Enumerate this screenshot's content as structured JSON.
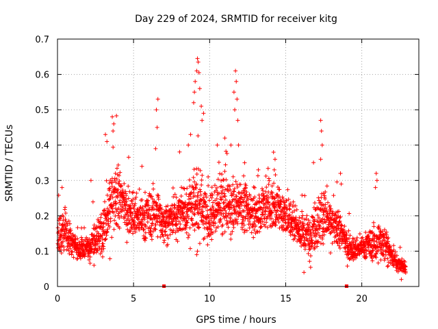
{
  "chart_data": {
    "type": "scatter",
    "title": "Day 229 of 2024, SRMTID for receiver kitg",
    "xlabel": "GPS time / hours",
    "ylabel": "SRMTID / TECUs",
    "xlim": [
      0,
      23.75
    ],
    "ylim": [
      0,
      0.7
    ],
    "xticks": [
      0,
      5,
      10,
      15,
      20
    ],
    "xtick_labels": [
      "0",
      "5",
      "10",
      "15",
      "20"
    ],
    "yticks": [
      0,
      0.1,
      0.2,
      0.3,
      0.4,
      0.5,
      0.6,
      0.7
    ],
    "ytick_labels": [
      "0",
      "0.1",
      "0.2",
      "0.3",
      "0.4",
      "0.5",
      "0.6",
      "0.7"
    ],
    "grid": true,
    "marker": "plus",
    "marker_color": "#ff0000",
    "envelope": {
      "description": "approximate local median and spread of the point cloud (data units)",
      "x": [
        0,
        0.5,
        1,
        1.5,
        2,
        2.5,
        3,
        3.5,
        4,
        4.5,
        5,
        5.5,
        6,
        6.5,
        7,
        7.5,
        8,
        8.5,
        9,
        9.5,
        10,
        10.5,
        11,
        11.5,
        12,
        12.5,
        13,
        13.5,
        14,
        14.5,
        15,
        15.5,
        16,
        16.5,
        17,
        17.5,
        18,
        18.5,
        19,
        19.5,
        20,
        20.5,
        21,
        21.5,
        22,
        22.5,
        22.9
      ],
      "median": [
        0.13,
        0.16,
        0.12,
        0.1,
        0.11,
        0.14,
        0.16,
        0.22,
        0.25,
        0.22,
        0.2,
        0.19,
        0.2,
        0.21,
        0.18,
        0.19,
        0.2,
        0.21,
        0.25,
        0.22,
        0.19,
        0.21,
        0.23,
        0.22,
        0.23,
        0.22,
        0.2,
        0.22,
        0.23,
        0.22,
        0.2,
        0.19,
        0.15,
        0.14,
        0.18,
        0.21,
        0.17,
        0.16,
        0.12,
        0.1,
        0.11,
        0.12,
        0.12,
        0.13,
        0.08,
        0.06,
        0.05
      ],
      "spread": [
        0.05,
        0.07,
        0.03,
        0.03,
        0.03,
        0.05,
        0.07,
        0.11,
        0.09,
        0.06,
        0.06,
        0.06,
        0.07,
        0.06,
        0.05,
        0.06,
        0.07,
        0.08,
        0.1,
        0.09,
        0.06,
        0.07,
        0.08,
        0.07,
        0.07,
        0.06,
        0.06,
        0.07,
        0.07,
        0.06,
        0.05,
        0.06,
        0.05,
        0.06,
        0.08,
        0.08,
        0.06,
        0.05,
        0.04,
        0.03,
        0.03,
        0.04,
        0.05,
        0.05,
        0.03,
        0.02,
        0.02
      ]
    },
    "spikes": [
      {
        "x": 0.3,
        "y": 0.28
      },
      {
        "x": 2.2,
        "y": 0.3
      },
      {
        "x": 3.15,
        "y": 0.43
      },
      {
        "x": 3.25,
        "y": 0.41
      },
      {
        "x": 3.6,
        "y": 0.48
      },
      {
        "x": 3.7,
        "y": 0.46
      },
      {
        "x": 3.65,
        "y": 0.44
      },
      {
        "x": 5.55,
        "y": 0.34
      },
      {
        "x": 6.6,
        "y": 0.53
      },
      {
        "x": 6.5,
        "y": 0.5
      },
      {
        "x": 6.55,
        "y": 0.45
      },
      {
        "x": 6.45,
        "y": 0.39
      },
      {
        "x": 8.6,
        "y": 0.4
      },
      {
        "x": 8.75,
        "y": 0.43
      },
      {
        "x": 8.95,
        "y": 0.52
      },
      {
        "x": 9.0,
        "y": 0.55
      },
      {
        "x": 9.05,
        "y": 0.58
      },
      {
        "x": 9.15,
        "y": 0.61
      },
      {
        "x": 9.2,
        "y": 0.645
      },
      {
        "x": 9.25,
        "y": 0.635
      },
      {
        "x": 9.3,
        "y": 0.605
      },
      {
        "x": 9.35,
        "y": 0.56
      },
      {
        "x": 9.45,
        "y": 0.51
      },
      {
        "x": 9.6,
        "y": 0.49
      },
      {
        "x": 9.5,
        "y": 0.47
      },
      {
        "x": 10.5,
        "y": 0.4
      },
      {
        "x": 11.0,
        "y": 0.42
      },
      {
        "x": 11.4,
        "y": 0.4
      },
      {
        "x": 11.6,
        "y": 0.55
      },
      {
        "x": 11.7,
        "y": 0.61
      },
      {
        "x": 11.75,
        "y": 0.58
      },
      {
        "x": 11.8,
        "y": 0.53
      },
      {
        "x": 11.65,
        "y": 0.5
      },
      {
        "x": 11.85,
        "y": 0.47
      },
      {
        "x": 11.9,
        "y": 0.4
      },
      {
        "x": 12.3,
        "y": 0.35
      },
      {
        "x": 13.2,
        "y": 0.33
      },
      {
        "x": 14.2,
        "y": 0.38
      },
      {
        "x": 14.3,
        "y": 0.36
      },
      {
        "x": 14.25,
        "y": 0.33
      },
      {
        "x": 17.3,
        "y": 0.47
      },
      {
        "x": 17.35,
        "y": 0.44
      },
      {
        "x": 17.4,
        "y": 0.4
      },
      {
        "x": 17.3,
        "y": 0.36
      },
      {
        "x": 18.6,
        "y": 0.32
      },
      {
        "x": 18.65,
        "y": 0.29
      },
      {
        "x": 20.95,
        "y": 0.32
      },
      {
        "x": 21.0,
        "y": 0.3
      },
      {
        "x": 20.9,
        "y": 0.28
      },
      {
        "x": 9.15,
        "y": 0.09
      },
      {
        "x": 9.2,
        "y": 0.1
      },
      {
        "x": 2.4,
        "y": 0.06
      },
      {
        "x": 16.2,
        "y": 0.04
      },
      {
        "x": 22.6,
        "y": 0.02
      }
    ],
    "zero_markers": [
      {
        "x": 7.0,
        "y": 0
      },
      {
        "x": 19.0,
        "y": 0
      }
    ]
  }
}
